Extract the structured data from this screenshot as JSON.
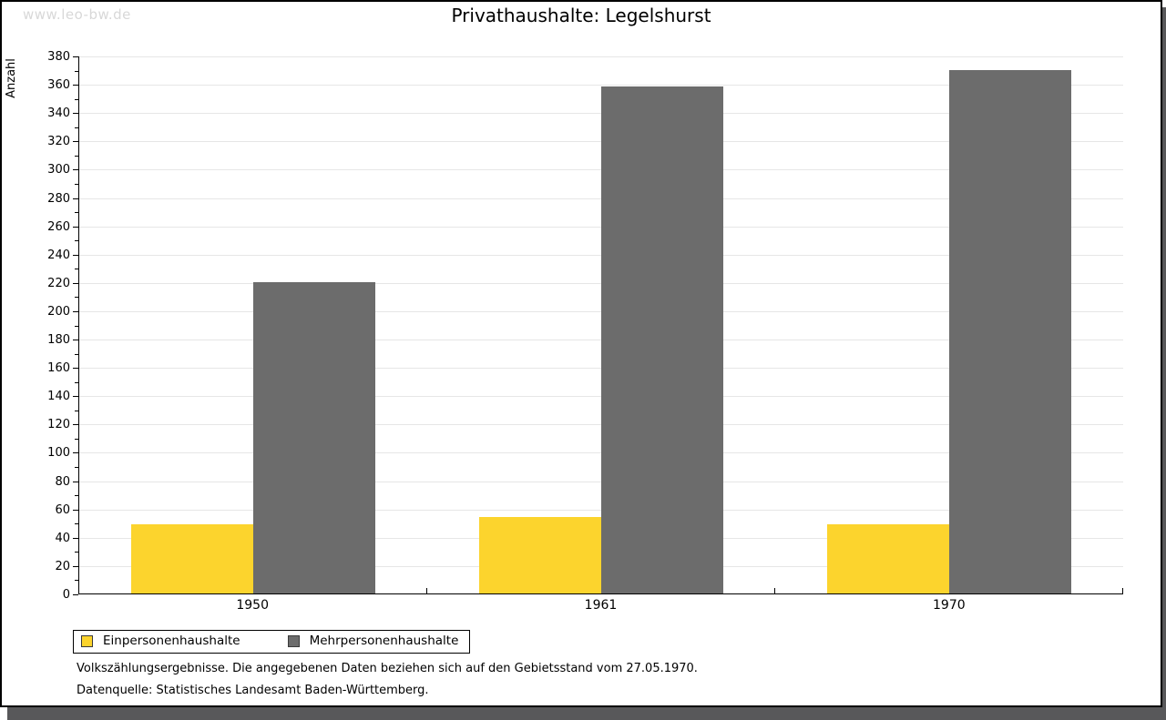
{
  "watermark": "www.leo-bw.de",
  "chart_data": {
    "type": "bar",
    "title": "Privathaushalte: Legelshurst",
    "xlabel": "",
    "ylabel": "Anzahl",
    "categories": [
      "1950",
      "1961",
      "1970"
    ],
    "series": [
      {
        "name": "Einpersonenhaushalte",
        "color": "#FCD42D",
        "values": [
          49,
          54,
          49
        ]
      },
      {
        "name": "Mehrpersonenhaushalte",
        "color": "#6C6C6C",
        "values": [
          220,
          358,
          370
        ]
      }
    ],
    "ylim": [
      0,
      380
    ],
    "ytick_step": 20,
    "yminor_step": 10,
    "grid": "horizontal-major",
    "legend_position": "bottom-left"
  },
  "footnotes": {
    "line1": "Volkszählungsergebnisse. Die angegebenen Daten beziehen sich auf den Gebietsstand vom 27.05.1970.",
    "line2": "Datenquelle: Statistisches Landesamt Baden-Württemberg."
  },
  "colors": {
    "series1": "#FCD42D",
    "series2": "#6C6C6C",
    "gridline": "#e6e6e6",
    "axis": "#000000",
    "shadow": "#58585a",
    "watermark_text": "#d8d8d8",
    "background": "#ffffff"
  }
}
